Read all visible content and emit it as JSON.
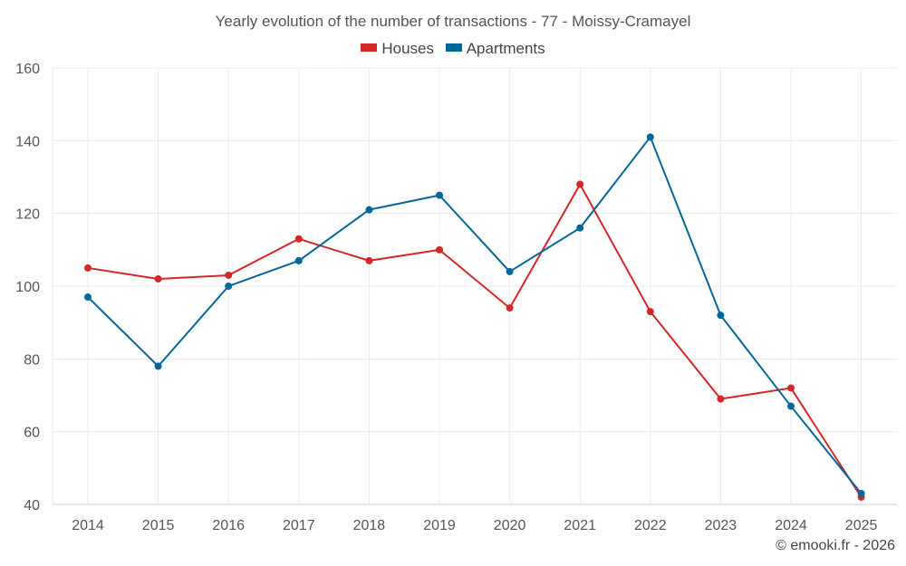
{
  "chart_data": {
    "type": "line",
    "title": "Yearly evolution of the number of transactions - 77 - Moissy-Cramayel",
    "categories": [
      "2014",
      "2015",
      "2016",
      "2017",
      "2018",
      "2019",
      "2020",
      "2021",
      "2022",
      "2023",
      "2024",
      "2025"
    ],
    "series": [
      {
        "name": "Houses",
        "color": "#d62728",
        "values": [
          105,
          102,
          103,
          113,
          107,
          110,
          94,
          128,
          93,
          69,
          72,
          42
        ]
      },
      {
        "name": "Apartments",
        "color": "#00679b",
        "values": [
          97,
          78,
          100,
          107,
          121,
          125,
          104,
          116,
          141,
          92,
          67,
          43
        ]
      }
    ],
    "ylim": [
      40,
      160
    ],
    "yticks": [
      40,
      60,
      80,
      100,
      120,
      140,
      160
    ],
    "xlabel": "",
    "ylabel": "",
    "grid": true,
    "legend_position": "top-center"
  },
  "credit": "© emooki.fr - 2026"
}
